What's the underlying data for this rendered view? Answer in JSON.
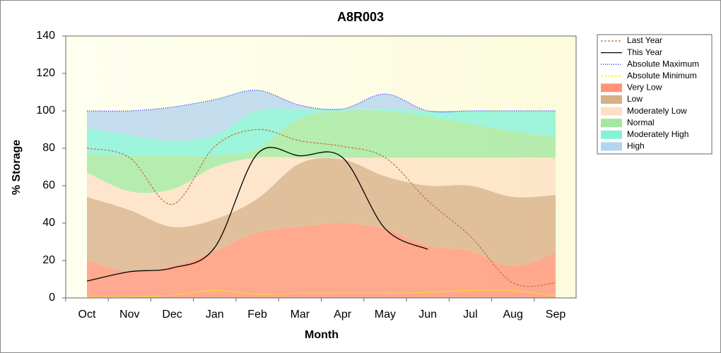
{
  "chart_data": {
    "type": "line",
    "title": "A8R003",
    "x_label": "Month",
    "y_label": "% Storage",
    "categories": [
      "Oct",
      "Nov",
      "Dec",
      "Jan",
      "Feb",
      "Mar",
      "Apr",
      "May",
      "Jun",
      "Jul",
      "Aug",
      "Sep"
    ],
    "ylim": [
      0,
      140
    ],
    "yticks": [
      0,
      20,
      40,
      60,
      80,
      100,
      120,
      140
    ],
    "grid": false,
    "legend": "right",
    "series": [
      {
        "name": "Last Year",
        "style": "line",
        "dash": "dashed",
        "color": "#c0703a",
        "values": [
          80,
          75,
          50,
          81,
          90,
          84,
          81,
          75,
          52,
          33,
          8,
          8
        ]
      },
      {
        "name": "This Year",
        "style": "line",
        "dash": "solid",
        "color": "#000000",
        "values": [
          9,
          14,
          16,
          27,
          77,
          76,
          75,
          37,
          26,
          null,
          null,
          null
        ]
      },
      {
        "name": "Absolute Maximum",
        "style": "line",
        "dash": "dotted",
        "color": "#1a1aff",
        "values": [
          100,
          100,
          102,
          106,
          111,
          103,
          101,
          109,
          100,
          100,
          100,
          100
        ]
      },
      {
        "name": "Absolute Minimum",
        "style": "line",
        "dash": "dashed",
        "color": "#ffee00",
        "values": [
          0.5,
          0.5,
          1.5,
          4,
          2,
          2.5,
          2.5,
          2.5,
          3,
          4,
          4,
          1
        ]
      },
      {
        "name": "Very Low",
        "style": "area",
        "color": "#ff9478",
        "values": [
          20,
          14,
          17,
          25,
          35,
          38,
          40,
          37,
          28,
          25,
          17,
          24
        ]
      },
      {
        "name": "Low",
        "style": "area",
        "color": "#d8b088",
        "values": [
          34,
          33,
          21,
          17,
          18,
          34,
          34,
          28,
          32,
          35,
          37,
          31
        ]
      },
      {
        "name": "Moderately Low",
        "style": "area",
        "color": "#fde0c4",
        "values": [
          13,
          10,
          20,
          28,
          22,
          3,
          1,
          10,
          15,
          15,
          21,
          20
        ]
      },
      {
        "name": "Normal",
        "style": "area",
        "color": "#a2e8a0",
        "values": [
          10,
          19,
          18,
          6,
          5,
          21,
          25,
          25,
          22,
          18,
          14,
          11
        ]
      },
      {
        "name": "Moderately High",
        "style": "area",
        "color": "#84f2d8",
        "values": [
          14,
          11,
          8,
          11,
          20,
          5,
          1,
          1,
          3,
          7,
          11,
          14
        ]
      },
      {
        "name": "High",
        "style": "area",
        "color": "#b4d4ee",
        "values": [
          9,
          13,
          18,
          19,
          11,
          2,
          0,
          8,
          0,
          0,
          0,
          0
        ]
      }
    ]
  }
}
